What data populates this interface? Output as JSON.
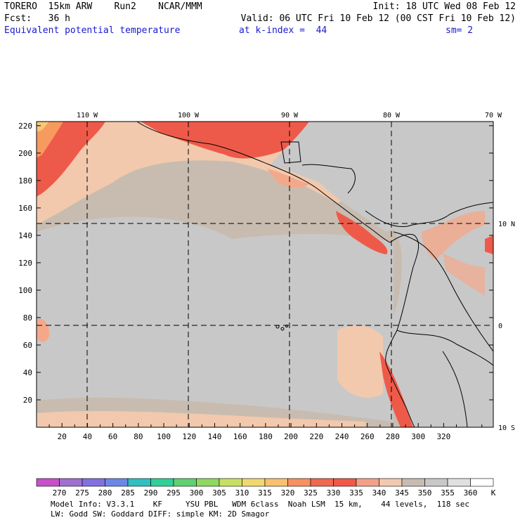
{
  "header": {
    "line1_left": "TORERO  15km ARW    Run2    NCAR/MMM",
    "line1_right": "Init: 18 UTC Wed 08 Feb 12",
    "line2_left": "Fcst:   36 h",
    "line2_right": "Valid: 06 UTC Fri 10 Feb 12 (00 CST Fri 10 Feb 12)",
    "line3_field": "Equivalent potential temperature",
    "line3_level": "at k-index =  44",
    "line3_smooth": "sm= 2"
  },
  "map": {
    "lon_labels": [
      "110 W",
      "100 W",
      "90 W",
      "80 W",
      "70 W"
    ],
    "lat_labels": [
      "10 N",
      "0",
      "10 S"
    ],
    "x_ticks": [
      "20",
      "40",
      "60",
      "80",
      "100",
      "120",
      "140",
      "160",
      "180",
      "200",
      "220",
      "240",
      "260",
      "280",
      "300",
      "320"
    ],
    "y_ticks": [
      "220",
      "200",
      "180",
      "160",
      "140",
      "120",
      "100",
      "80",
      "60",
      "40",
      "20"
    ],
    "colors": {
      "ocean_cool": "#c8c8c8",
      "ocean_warm": "#c9bdb2",
      "tan": "#f2c9ad",
      "salmon": "#f4a88b",
      "red": "#ee5a4a",
      "orange": "#f79a5e",
      "yellow": "#f8c878",
      "coast": "#000000"
    }
  },
  "colorbar": {
    "labels": [
      "270",
      "275",
      "280",
      "285",
      "290",
      "295",
      "300",
      "305",
      "310",
      "315",
      "320",
      "325",
      "330",
      "335",
      "340",
      "345",
      "350",
      "355",
      "360",
      "K"
    ],
    "colors": [
      "#c850c8",
      "#a070d0",
      "#8070e0",
      "#6c88e6",
      "#30c0c0",
      "#30d098",
      "#60d070",
      "#90d860",
      "#c8e060",
      "#f0d870",
      "#f8c070",
      "#f89060",
      "#f06850",
      "#f05848",
      "#f4a088",
      "#f2c8b0",
      "#c8bcb0",
      "#c8c8c8",
      "#e0e0e0",
      "#ffffff"
    ]
  },
  "footer": {
    "line1": "Model Info: V3.3.1    KF     YSU PBL   WDM 6class  Noah LSM  15 km,    44 levels,  118 sec",
    "line2": "LW: Godd SW: Goddard DIFF: simple KM: 2D Smagor"
  }
}
